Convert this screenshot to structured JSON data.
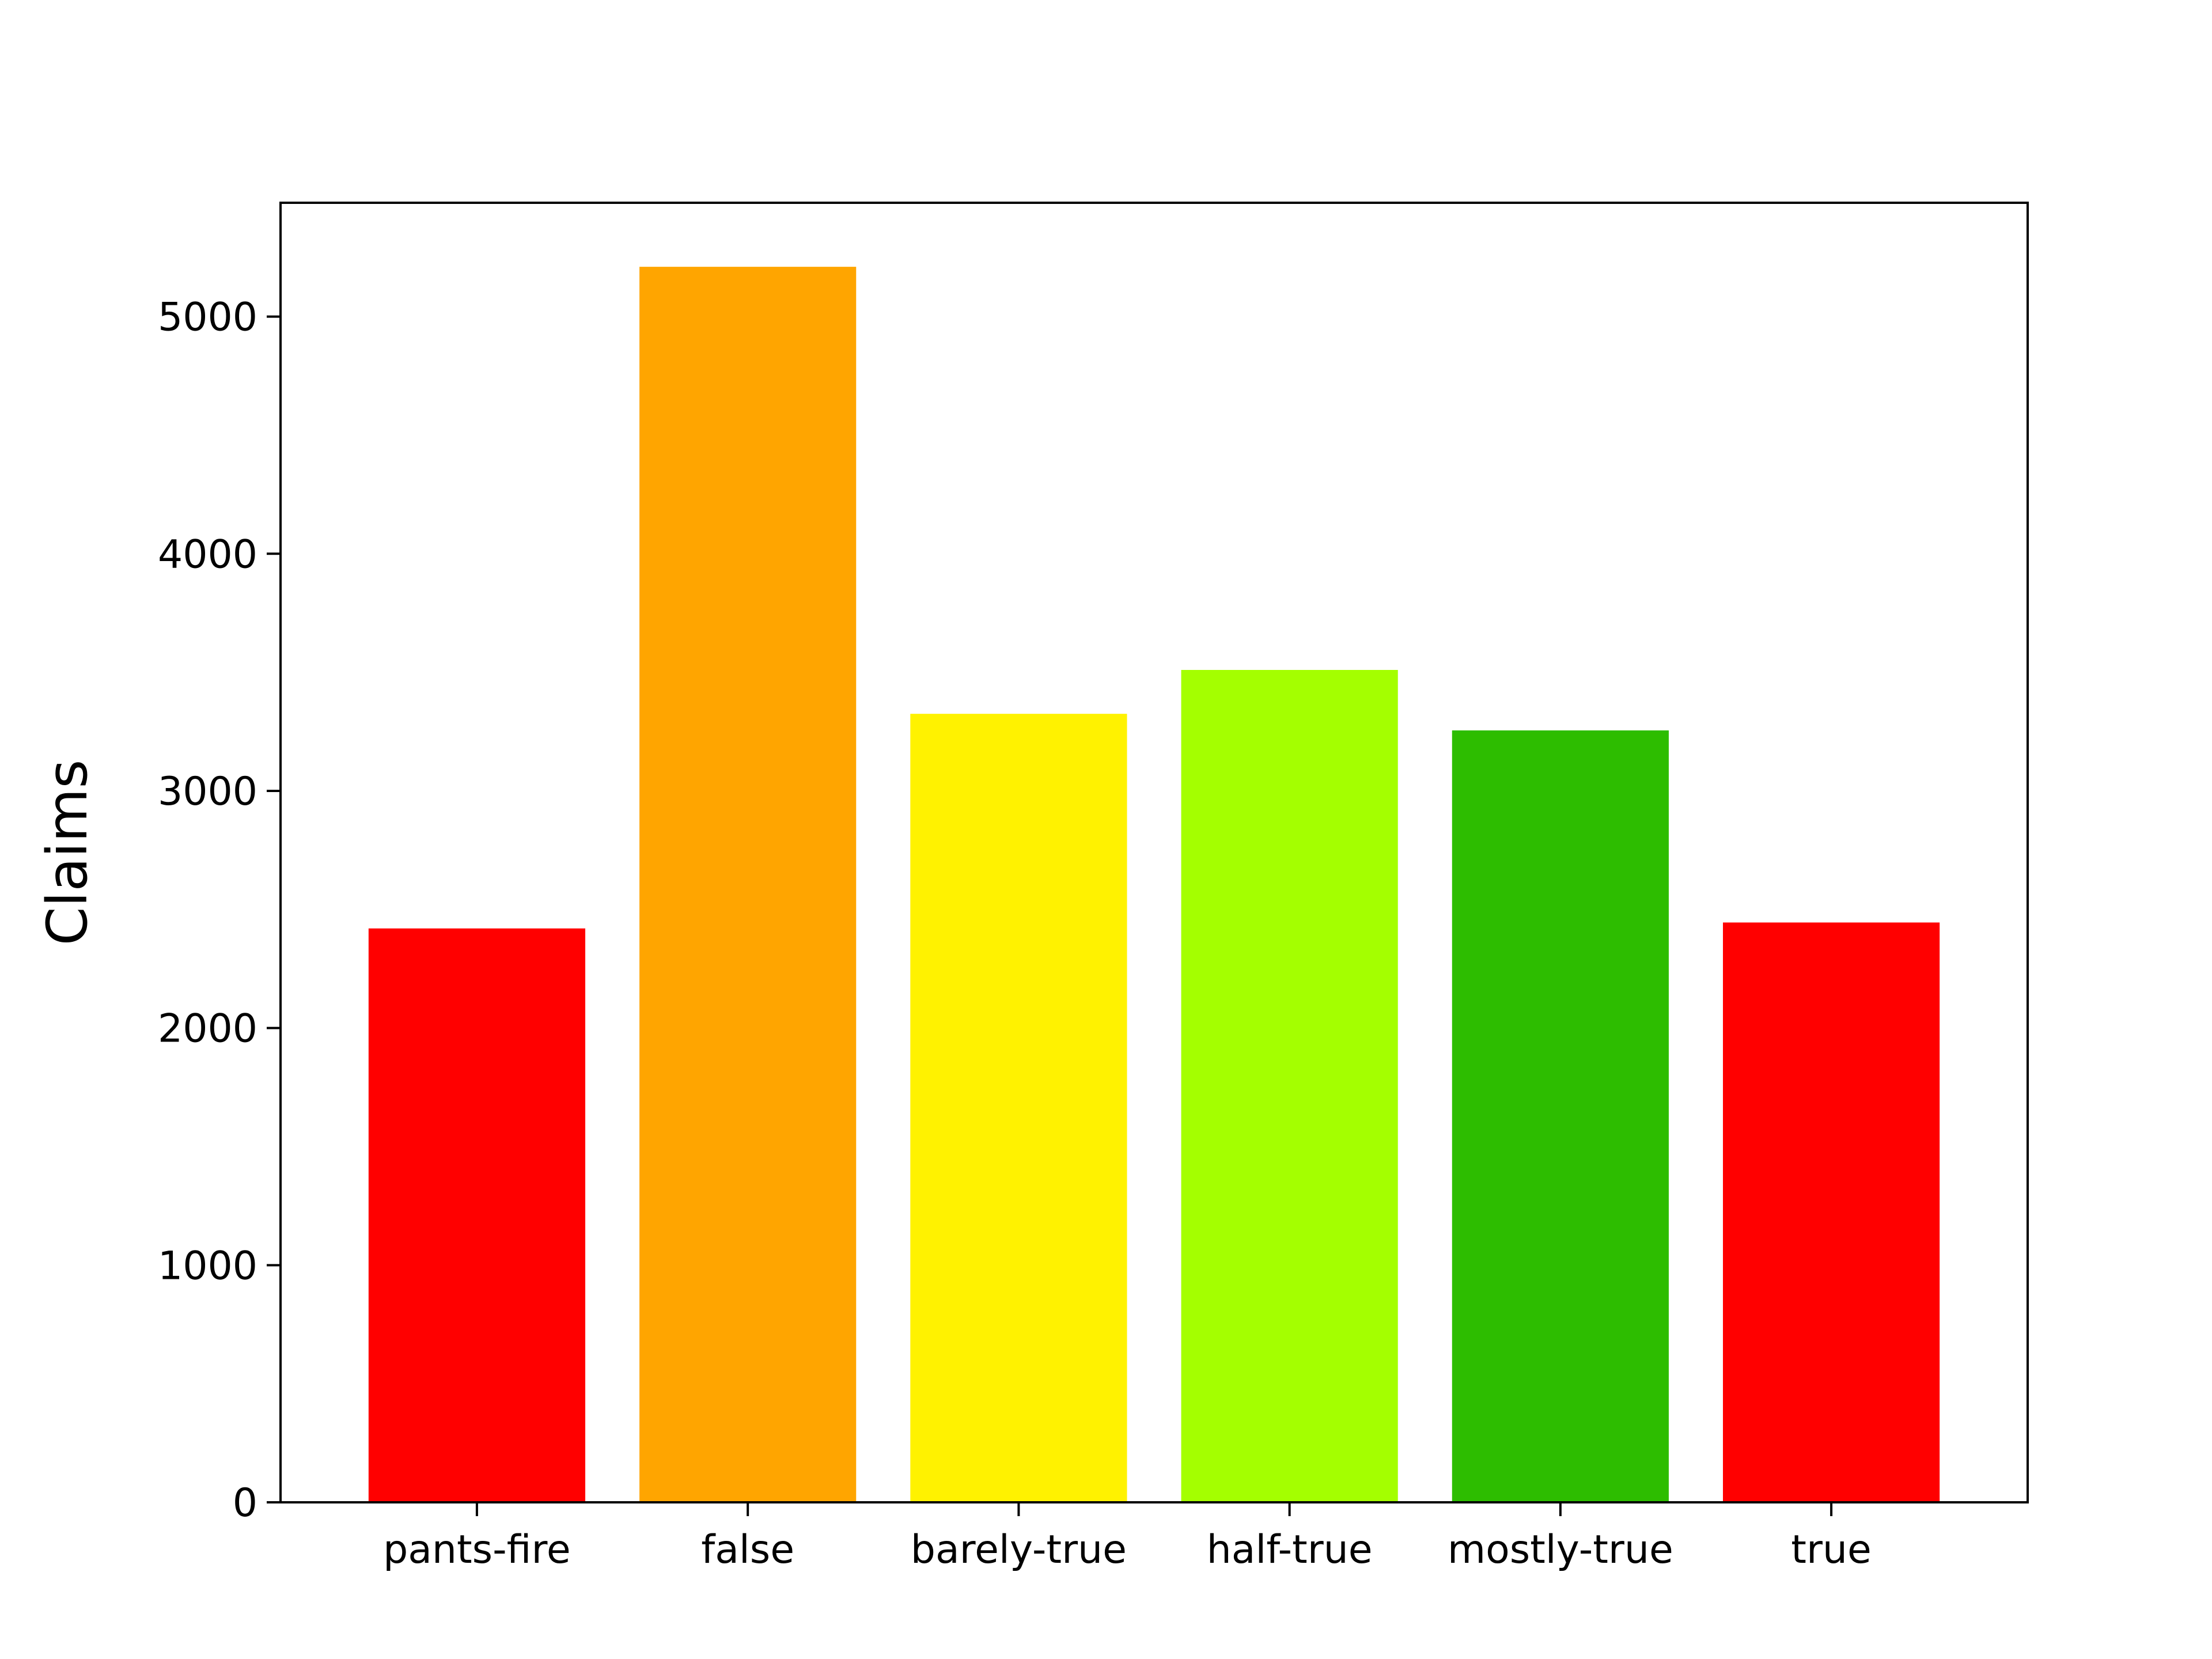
{
  "chart_data": {
    "type": "bar",
    "title": "",
    "xlabel": "",
    "ylabel": "Claims",
    "categories": [
      "pants-fire",
      "false",
      "barely-true",
      "half-true",
      "mostly-true",
      "true"
    ],
    "values": [
      2420,
      5210,
      3325,
      3510,
      3255,
      2445
    ],
    "colors": [
      "#ff0000",
      "#ffa500",
      "#fff200",
      "#a4ff00",
      "#2dbd00",
      "#ff0000"
    ],
    "ylim": [
      0,
      5480
    ],
    "yticks": [
      0,
      1000,
      2000,
      3000,
      4000,
      5000
    ],
    "ytick_labels": [
      "0",
      "1000",
      "2000",
      "3000",
      "4000",
      "5000"
    ],
    "grid": false,
    "legend": "none"
  }
}
